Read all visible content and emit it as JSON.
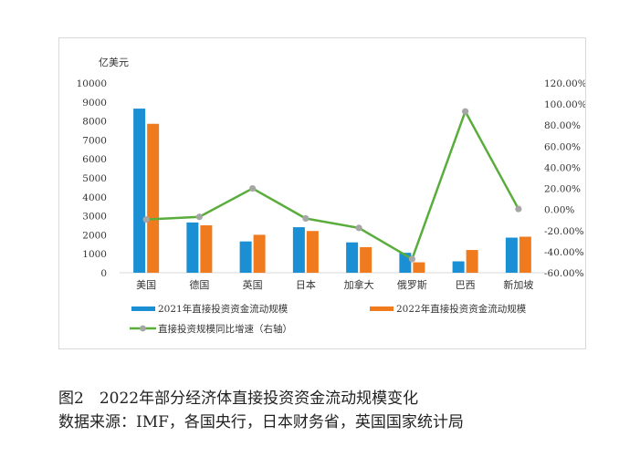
{
  "figure": {
    "title": "图2　2022年部分经济体直接投资资金流动规模变化",
    "source": "数据来源：IMF，各国央行，日本财务省，英国国家统计局"
  },
  "chart_data": {
    "type": "bar",
    "title": "",
    "y_left_unit": "亿美元",
    "categories": [
      "美国",
      "德国",
      "英国",
      "日本",
      "加拿大",
      "俄罗斯",
      "巴西",
      "新加坡"
    ],
    "y_left": {
      "min": 0,
      "max": 10000,
      "ticks": [
        0,
        1000,
        2000,
        3000,
        4000,
        5000,
        6000,
        7000,
        8000,
        9000,
        10000
      ],
      "tick_labels": [
        "0",
        "1000",
        "2000",
        "3000",
        "4000",
        "5000",
        "6000",
        "7000",
        "8000",
        "9000",
        "10000"
      ]
    },
    "y_right": {
      "min": -60,
      "max": 120,
      "ticks": [
        -60,
        -40,
        -20,
        0,
        20,
        40,
        60,
        80,
        100,
        120
      ],
      "tick_labels": [
        "-60.00%",
        "-40.00%",
        "-20.00%",
        "0.00%",
        "20.00%",
        "40.00%",
        "60.00%",
        "80.00%",
        "100.00%",
        "120.00%"
      ]
    },
    "series": [
      {
        "name": "2021年直接投资资金流动规模",
        "type": "bar",
        "axis": "left",
        "color": "#1a8fd4",
        "values": [
          8650,
          2650,
          1650,
          2400,
          1600,
          1050,
          600,
          1850
        ]
      },
      {
        "name": "2022年直接投资资金流动规模",
        "type": "bar",
        "axis": "left",
        "color": "#f07b1f",
        "values": [
          7850,
          2500,
          2000,
          2200,
          1350,
          550,
          1200,
          1900
        ]
      },
      {
        "name": "直接投资规模同比增速（右轴）",
        "type": "line",
        "axis": "right",
        "color": "#5aad3c",
        "marker_color": "#a6a6a6",
        "values": [
          -9.5,
          -7,
          20,
          -8.5,
          -17.5,
          -47,
          93,
          0.5
        ]
      }
    ],
    "legend_position": "bottom",
    "grid": false
  }
}
